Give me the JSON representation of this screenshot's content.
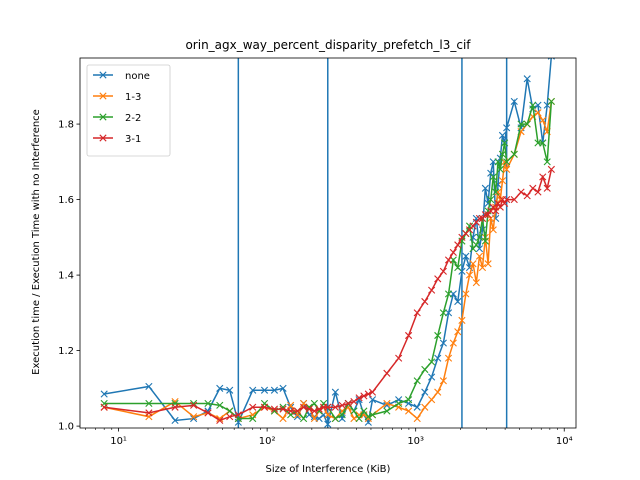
{
  "chart_data": {
    "type": "line",
    "title": "orin_agx_way_percent_disparity_prefetch_l3_cif",
    "xlabel": "Size of Interference (KiB)",
    "ylabel": "Execution time / Execution Time with no Interference",
    "xscale": "log",
    "xlim": [
      5.5,
      12000
    ],
    "ylim": [
      0.995,
      1.975
    ],
    "x_ticks": [
      {
        "value": 10,
        "label": "10¹"
      },
      {
        "value": 100,
        "label": "10²"
      },
      {
        "value": 1000,
        "label": "10³"
      },
      {
        "value": 10000,
        "label": "10⁴"
      }
    ],
    "y_ticks": [
      1.0,
      1.2,
      1.4,
      1.6,
      1.8
    ],
    "grid": false,
    "legend_position": "top-left",
    "marker": "x",
    "vlines": [
      64,
      256,
      2048,
      4096
    ],
    "vline_color": "#1f77b4",
    "series": [
      {
        "name": "none",
        "color": "#1f77b4",
        "x": [
          8,
          16,
          24,
          32,
          40,
          48,
          56,
          64,
          80,
          96,
          112,
          128,
          144,
          160,
          176,
          192,
          208,
          224,
          240,
          256,
          288,
          320,
          352,
          384,
          416,
          448,
          480,
          512,
          640,
          768,
          896,
          1024,
          1152,
          1280,
          1408,
          1536,
          1664,
          1792,
          1920,
          2048,
          2176,
          2304,
          2432,
          2560,
          2688,
          2816,
          2944,
          3072,
          3200,
          3328,
          3456,
          3584,
          3712,
          3840,
          3968,
          4096,
          4608,
          5120,
          5632,
          6144,
          6656,
          7168,
          7680,
          8192
        ],
        "y": [
          1.085,
          1.105,
          1.015,
          1.02,
          1.04,
          1.1,
          1.095,
          1.01,
          1.095,
          1.095,
          1.095,
          1.1,
          1.05,
          1.025,
          1.06,
          1.03,
          1.025,
          1.02,
          1.03,
          1.005,
          1.09,
          1.02,
          1.06,
          1.04,
          1.07,
          1.03,
          1.01,
          1.07,
          1.055,
          1.07,
          1.06,
          1.05,
          1.09,
          1.13,
          1.18,
          1.22,
          1.3,
          1.35,
          1.33,
          1.41,
          1.45,
          1.42,
          1.5,
          1.55,
          1.47,
          1.52,
          1.63,
          1.59,
          1.67,
          1.7,
          1.55,
          1.64,
          1.71,
          1.77,
          1.75,
          1.79,
          1.86,
          1.79,
          1.92,
          1.84,
          1.85,
          1.75,
          1.85,
          1.98
        ]
      },
      {
        "name": "1-3",
        "color": "#ff7f0e",
        "x": [
          8,
          16,
          24,
          32,
          40,
          48,
          56,
          64,
          80,
          96,
          112,
          128,
          144,
          160,
          176,
          192,
          208,
          224,
          240,
          256,
          288,
          320,
          352,
          384,
          416,
          448,
          480,
          512,
          640,
          768,
          896,
          1024,
          1152,
          1280,
          1408,
          1536,
          1664,
          1792,
          1920,
          2048,
          2176,
          2304,
          2432,
          2560,
          2688,
          2816,
          2944,
          3072,
          3200,
          3328,
          3456,
          3584,
          3712,
          3840,
          3968,
          4096,
          4608,
          5120,
          5632,
          6144,
          6656,
          7168,
          7680,
          8192
        ],
        "y": [
          1.05,
          1.025,
          1.065,
          1.025,
          1.035,
          1.02,
          1.04,
          1.02,
          1.03,
          1.05,
          1.04,
          1.02,
          1.055,
          1.03,
          1.06,
          1.05,
          1.02,
          1.04,
          1.05,
          1.03,
          1.02,
          1.04,
          1.05,
          1.02,
          1.03,
          1.03,
          1.02,
          1.03,
          1.06,
          1.05,
          1.04,
          1.02,
          1.05,
          1.07,
          1.09,
          1.12,
          1.18,
          1.22,
          1.25,
          1.28,
          1.35,
          1.4,
          1.43,
          1.38,
          1.45,
          1.42,
          1.5,
          1.43,
          1.55,
          1.52,
          1.58,
          1.62,
          1.6,
          1.65,
          1.7,
          1.68,
          1.72,
          1.78,
          1.8,
          1.82,
          1.83,
          1.81,
          1.78,
          1.86
        ]
      },
      {
        "name": "2-2",
        "color": "#2ca02c",
        "x": [
          8,
          16,
          24,
          32,
          40,
          48,
          56,
          64,
          80,
          96,
          112,
          128,
          144,
          160,
          176,
          192,
          208,
          224,
          240,
          256,
          288,
          320,
          352,
          384,
          416,
          448,
          480,
          512,
          640,
          768,
          896,
          1024,
          1152,
          1280,
          1408,
          1536,
          1664,
          1792,
          1920,
          2048,
          2176,
          2304,
          2432,
          2560,
          2688,
          2816,
          2944,
          3072,
          3200,
          3328,
          3456,
          3584,
          3712,
          3840,
          3968,
          4096,
          4608,
          5120,
          5632,
          6144,
          6656,
          7168,
          7680,
          8192
        ],
        "y": [
          1.06,
          1.06,
          1.06,
          1.06,
          1.06,
          1.055,
          1.04,
          1.02,
          1.02,
          1.06,
          1.04,
          1.05,
          1.03,
          1.04,
          1.02,
          1.05,
          1.06,
          1.04,
          1.06,
          1.05,
          1.02,
          1.03,
          1.06,
          1.04,
          1.02,
          1.04,
          1.025,
          1.03,
          1.04,
          1.06,
          1.07,
          1.12,
          1.15,
          1.17,
          1.24,
          1.3,
          1.35,
          1.44,
          1.42,
          1.49,
          1.51,
          1.53,
          1.47,
          1.48,
          1.5,
          1.55,
          1.49,
          1.57,
          1.6,
          1.66,
          1.62,
          1.7,
          1.68,
          1.72,
          1.75,
          1.7,
          1.72,
          1.8,
          1.8,
          1.85,
          1.75,
          1.75,
          1.7,
          1.86
        ]
      },
      {
        "name": "3-1",
        "color": "#d62728",
        "x": [
          8,
          16,
          24,
          32,
          40,
          48,
          56,
          64,
          80,
          96,
          112,
          128,
          144,
          160,
          176,
          192,
          208,
          224,
          240,
          256,
          288,
          320,
          352,
          384,
          416,
          448,
          480,
          512,
          640,
          768,
          896,
          1024,
          1152,
          1280,
          1408,
          1536,
          1664,
          1792,
          1920,
          2048,
          2176,
          2304,
          2432,
          2560,
          2688,
          2816,
          2944,
          3072,
          3200,
          3328,
          3456,
          3584,
          3712,
          3840,
          3968,
          4096,
          4608,
          5120,
          5632,
          6144,
          6656,
          7168,
          7680,
          8192
        ],
        "y": [
          1.05,
          1.035,
          1.05,
          1.055,
          1.035,
          1.015,
          1.025,
          1.03,
          1.05,
          1.05,
          1.045,
          1.045,
          1.04,
          1.04,
          1.05,
          1.045,
          1.04,
          1.045,
          1.05,
          1.05,
          1.05,
          1.055,
          1.06,
          1.065,
          1.075,
          1.08,
          1.085,
          1.09,
          1.14,
          1.18,
          1.24,
          1.3,
          1.33,
          1.36,
          1.39,
          1.41,
          1.44,
          1.46,
          1.48,
          1.5,
          1.51,
          1.52,
          1.53,
          1.54,
          1.55,
          1.55,
          1.56,
          1.56,
          1.57,
          1.58,
          1.57,
          1.59,
          1.58,
          1.6,
          1.59,
          1.6,
          1.6,
          1.62,
          1.61,
          1.63,
          1.62,
          1.66,
          1.63,
          1.68
        ]
      }
    ]
  }
}
